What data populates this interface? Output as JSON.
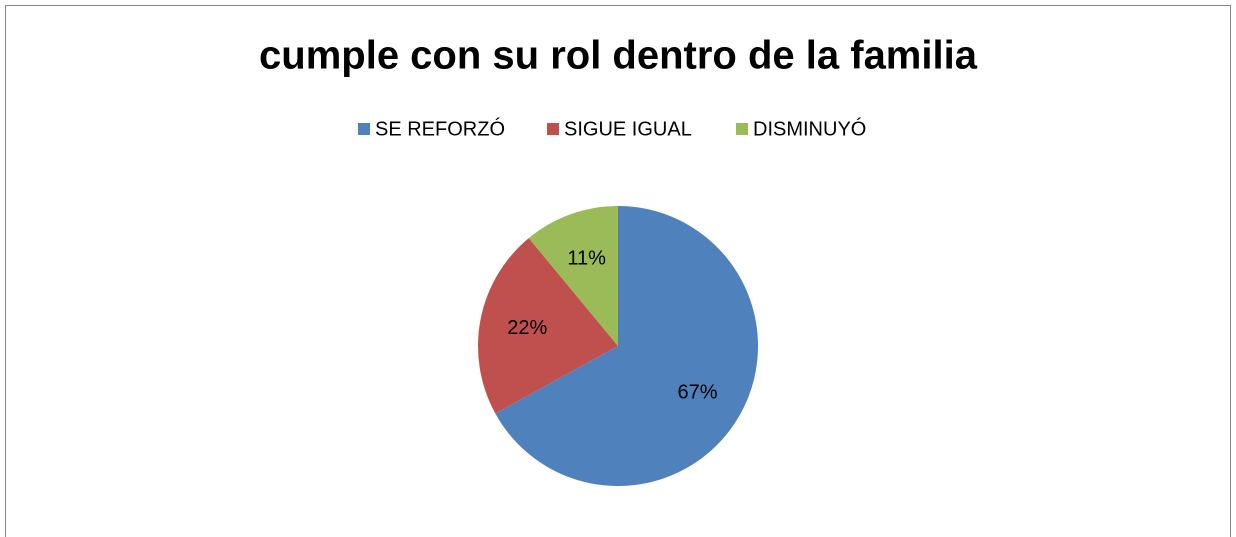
{
  "chart_data": {
    "type": "pie",
    "title": "cumple con su rol dentro de la familia",
    "categories": [
      "SE REFORZÓ",
      "SIGUE IGUAL",
      "DISMINUYÓ"
    ],
    "values": [
      67,
      22,
      11
    ],
    "value_labels": [
      "67%",
      "22%",
      "11%"
    ],
    "colors": [
      "#4f81bd",
      "#c0504d",
      "#9bbb59"
    ],
    "legend": "top"
  }
}
